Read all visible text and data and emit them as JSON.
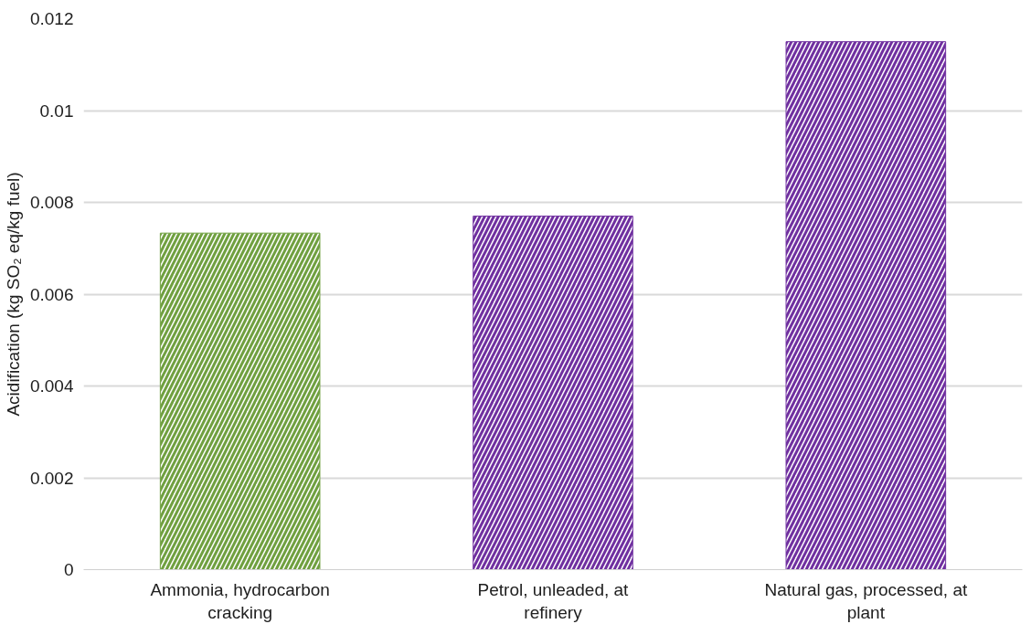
{
  "chart_data": {
    "type": "bar",
    "ylabel": "Acidification (kg SO₂ eq/kg fuel)",
    "categories": [
      "Ammonia, hydrocarbon cracking",
      "Petrol, unleaded, at refinery",
      "Natural gas, processed, at plant"
    ],
    "values": [
      0.00733,
      0.0077,
      0.0115
    ],
    "colors": [
      "#70a040",
      "#7030a0",
      "#7030a0"
    ],
    "ylim": [
      0,
      0.012
    ],
    "yticks": [
      0,
      0.002,
      0.004,
      0.006,
      0.008,
      0.01,
      0.012
    ],
    "grid": "y"
  }
}
